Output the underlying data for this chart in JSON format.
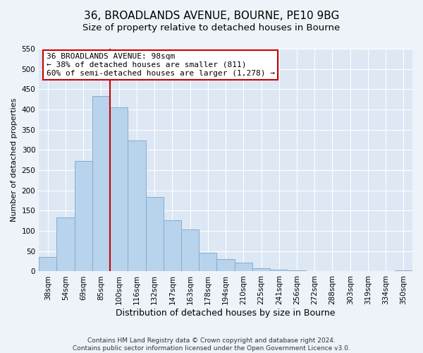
{
  "title": "36, BROADLANDS AVENUE, BOURNE, PE10 9BG",
  "subtitle": "Size of property relative to detached houses in Bourne",
  "xlabel": "Distribution of detached houses by size in Bourne",
  "ylabel": "Number of detached properties",
  "bar_labels": [
    "38sqm",
    "54sqm",
    "69sqm",
    "85sqm",
    "100sqm",
    "116sqm",
    "132sqm",
    "147sqm",
    "163sqm",
    "178sqm",
    "194sqm",
    "210sqm",
    "225sqm",
    "241sqm",
    "256sqm",
    "272sqm",
    "288sqm",
    "303sqm",
    "319sqm",
    "334sqm",
    "350sqm"
  ],
  "bar_values": [
    35,
    133,
    272,
    433,
    405,
    323,
    183,
    127,
    103,
    46,
    30,
    21,
    8,
    4,
    2,
    1,
    1,
    1,
    1,
    1,
    3
  ],
  "bar_color": "#b8d4ec",
  "bar_edge_color": "#88aacc",
  "vline_x": 4,
  "vline_color": "#cc0000",
  "annotation_title": "36 BROADLANDS AVENUE: 98sqm",
  "annotation_line1": "← 38% of detached houses are smaller (811)",
  "annotation_line2": "60% of semi-detached houses are larger (1,278) →",
  "annotation_box_facecolor": "#ffffff",
  "annotation_box_edgecolor": "#cc0000",
  "ylim": [
    0,
    550
  ],
  "yticks": [
    0,
    50,
    100,
    150,
    200,
    250,
    300,
    350,
    400,
    450,
    500,
    550
  ],
  "footer1": "Contains HM Land Registry data © Crown copyright and database right 2024.",
  "footer2": "Contains public sector information licensed under the Open Government Licence v3.0.",
  "bg_color": "#eef3fa",
  "plot_bg_color": "#dde8f4",
  "grid_color": "#ffffff",
  "title_fontsize": 11,
  "subtitle_fontsize": 9.5,
  "xlabel_fontsize": 9,
  "ylabel_fontsize": 8,
  "tick_fontsize": 7.5,
  "annotation_fontsize": 8,
  "footer_fontsize": 6.5
}
